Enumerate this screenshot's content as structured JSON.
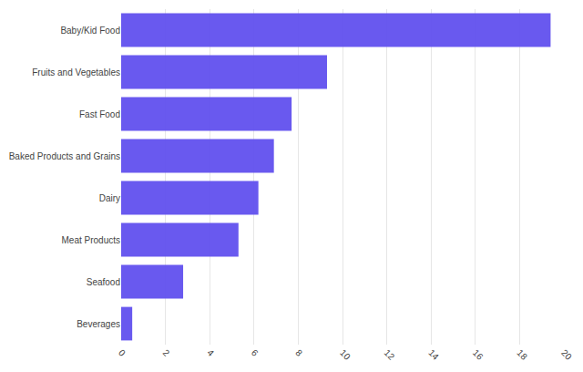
{
  "chart_data": {
    "type": "bar",
    "orientation": "horizontal",
    "categories": [
      "Baby/Kid Food",
      "Fruits and Vegetables",
      "Fast Food",
      "Baked Products and Grains",
      "Dairy",
      "Meat Products",
      "Seafood",
      "Beverages"
    ],
    "values": [
      19.4,
      9.3,
      7.7,
      6.9,
      6.2,
      5.3,
      2.8,
      0.5
    ],
    "color": "#6150ee",
    "xlim": [
      0,
      20
    ],
    "xticks": [
      0,
      2,
      4,
      6,
      8,
      10,
      12,
      14,
      16,
      18,
      20
    ],
    "grid": true
  }
}
